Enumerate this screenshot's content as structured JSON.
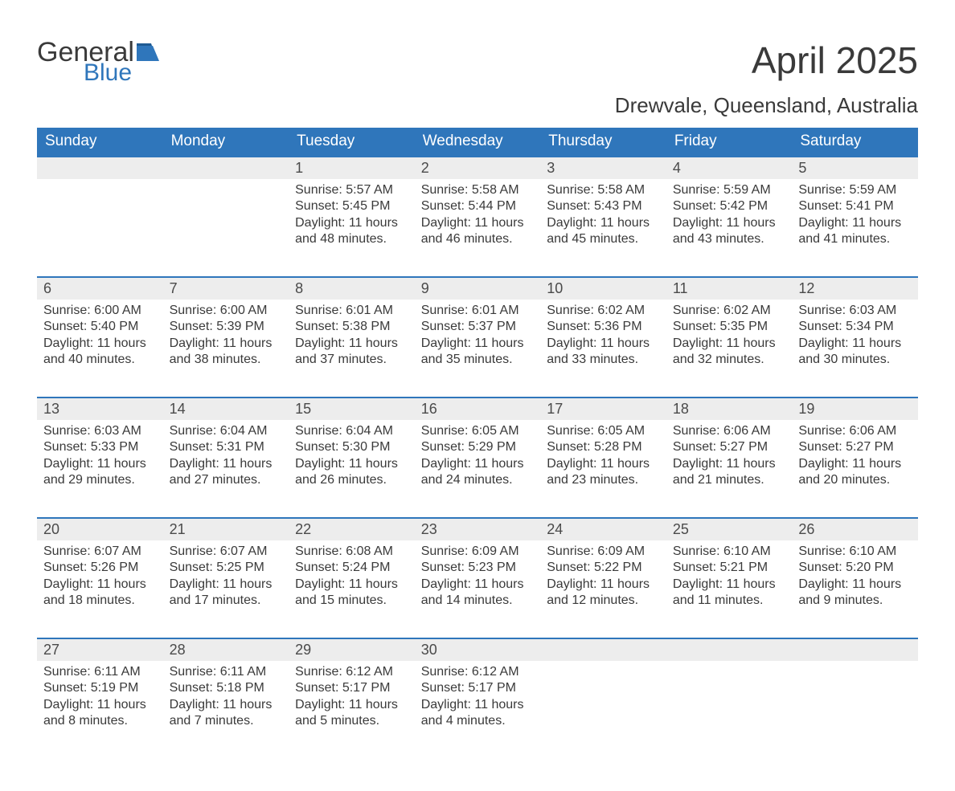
{
  "colors": {
    "header_bg": "#2f76bb",
    "daynum_bg": "#ededed",
    "text": "#3a3a3a",
    "white": "#ffffff",
    "logo_blue": "#2f76bb"
  },
  "logo": {
    "word1": "General",
    "word2": "Blue"
  },
  "title": "April 2025",
  "location": "Drewvale, Queensland, Australia",
  "weekdays": [
    "Sunday",
    "Monday",
    "Tuesday",
    "Wednesday",
    "Thursday",
    "Friday",
    "Saturday"
  ],
  "weeks": [
    [
      null,
      null,
      {
        "n": "1",
        "sr": "Sunrise: 5:57 AM",
        "ss": "Sunset: 5:45 PM",
        "dl": "Daylight: 11 hours and 48 minutes."
      },
      {
        "n": "2",
        "sr": "Sunrise: 5:58 AM",
        "ss": "Sunset: 5:44 PM",
        "dl": "Daylight: 11 hours and 46 minutes."
      },
      {
        "n": "3",
        "sr": "Sunrise: 5:58 AM",
        "ss": "Sunset: 5:43 PM",
        "dl": "Daylight: 11 hours and 45 minutes."
      },
      {
        "n": "4",
        "sr": "Sunrise: 5:59 AM",
        "ss": "Sunset: 5:42 PM",
        "dl": "Daylight: 11 hours and 43 minutes."
      },
      {
        "n": "5",
        "sr": "Sunrise: 5:59 AM",
        "ss": "Sunset: 5:41 PM",
        "dl": "Daylight: 11 hours and 41 minutes."
      }
    ],
    [
      {
        "n": "6",
        "sr": "Sunrise: 6:00 AM",
        "ss": "Sunset: 5:40 PM",
        "dl": "Daylight: 11 hours and 40 minutes."
      },
      {
        "n": "7",
        "sr": "Sunrise: 6:00 AM",
        "ss": "Sunset: 5:39 PM",
        "dl": "Daylight: 11 hours and 38 minutes."
      },
      {
        "n": "8",
        "sr": "Sunrise: 6:01 AM",
        "ss": "Sunset: 5:38 PM",
        "dl": "Daylight: 11 hours and 37 minutes."
      },
      {
        "n": "9",
        "sr": "Sunrise: 6:01 AM",
        "ss": "Sunset: 5:37 PM",
        "dl": "Daylight: 11 hours and 35 minutes."
      },
      {
        "n": "10",
        "sr": "Sunrise: 6:02 AM",
        "ss": "Sunset: 5:36 PM",
        "dl": "Daylight: 11 hours and 33 minutes."
      },
      {
        "n": "11",
        "sr": "Sunrise: 6:02 AM",
        "ss": "Sunset: 5:35 PM",
        "dl": "Daylight: 11 hours and 32 minutes."
      },
      {
        "n": "12",
        "sr": "Sunrise: 6:03 AM",
        "ss": "Sunset: 5:34 PM",
        "dl": "Daylight: 11 hours and 30 minutes."
      }
    ],
    [
      {
        "n": "13",
        "sr": "Sunrise: 6:03 AM",
        "ss": "Sunset: 5:33 PM",
        "dl": "Daylight: 11 hours and 29 minutes."
      },
      {
        "n": "14",
        "sr": "Sunrise: 6:04 AM",
        "ss": "Sunset: 5:31 PM",
        "dl": "Daylight: 11 hours and 27 minutes."
      },
      {
        "n": "15",
        "sr": "Sunrise: 6:04 AM",
        "ss": "Sunset: 5:30 PM",
        "dl": "Daylight: 11 hours and 26 minutes."
      },
      {
        "n": "16",
        "sr": "Sunrise: 6:05 AM",
        "ss": "Sunset: 5:29 PM",
        "dl": "Daylight: 11 hours and 24 minutes."
      },
      {
        "n": "17",
        "sr": "Sunrise: 6:05 AM",
        "ss": "Sunset: 5:28 PM",
        "dl": "Daylight: 11 hours and 23 minutes."
      },
      {
        "n": "18",
        "sr": "Sunrise: 6:06 AM",
        "ss": "Sunset: 5:27 PM",
        "dl": "Daylight: 11 hours and 21 minutes."
      },
      {
        "n": "19",
        "sr": "Sunrise: 6:06 AM",
        "ss": "Sunset: 5:27 PM",
        "dl": "Daylight: 11 hours and 20 minutes."
      }
    ],
    [
      {
        "n": "20",
        "sr": "Sunrise: 6:07 AM",
        "ss": "Sunset: 5:26 PM",
        "dl": "Daylight: 11 hours and 18 minutes."
      },
      {
        "n": "21",
        "sr": "Sunrise: 6:07 AM",
        "ss": "Sunset: 5:25 PM",
        "dl": "Daylight: 11 hours and 17 minutes."
      },
      {
        "n": "22",
        "sr": "Sunrise: 6:08 AM",
        "ss": "Sunset: 5:24 PM",
        "dl": "Daylight: 11 hours and 15 minutes."
      },
      {
        "n": "23",
        "sr": "Sunrise: 6:09 AM",
        "ss": "Sunset: 5:23 PM",
        "dl": "Daylight: 11 hours and 14 minutes."
      },
      {
        "n": "24",
        "sr": "Sunrise: 6:09 AM",
        "ss": "Sunset: 5:22 PM",
        "dl": "Daylight: 11 hours and 12 minutes."
      },
      {
        "n": "25",
        "sr": "Sunrise: 6:10 AM",
        "ss": "Sunset: 5:21 PM",
        "dl": "Daylight: 11 hours and 11 minutes."
      },
      {
        "n": "26",
        "sr": "Sunrise: 6:10 AM",
        "ss": "Sunset: 5:20 PM",
        "dl": "Daylight: 11 hours and 9 minutes."
      }
    ],
    [
      {
        "n": "27",
        "sr": "Sunrise: 6:11 AM",
        "ss": "Sunset: 5:19 PM",
        "dl": "Daylight: 11 hours and 8 minutes."
      },
      {
        "n": "28",
        "sr": "Sunrise: 6:11 AM",
        "ss": "Sunset: 5:18 PM",
        "dl": "Daylight: 11 hours and 7 minutes."
      },
      {
        "n": "29",
        "sr": "Sunrise: 6:12 AM",
        "ss": "Sunset: 5:17 PM",
        "dl": "Daylight: 11 hours and 5 minutes."
      },
      {
        "n": "30",
        "sr": "Sunrise: 6:12 AM",
        "ss": "Sunset: 5:17 PM",
        "dl": "Daylight: 11 hours and 4 minutes."
      },
      null,
      null,
      null
    ]
  ]
}
